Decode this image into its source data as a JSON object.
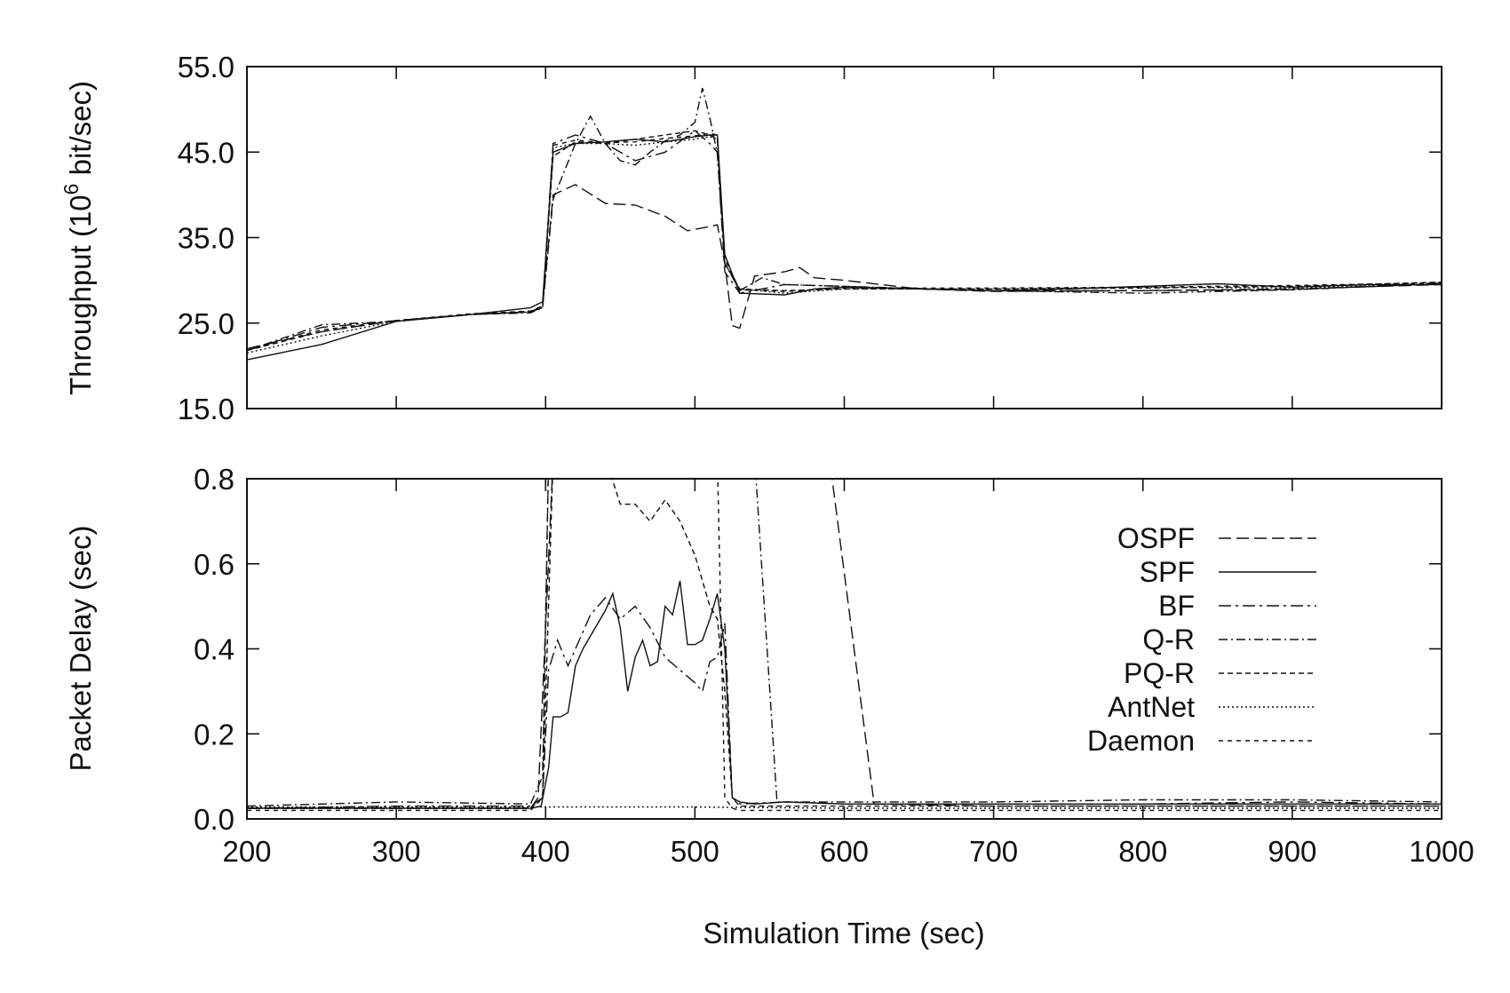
{
  "chart_data": [
    {
      "type": "line",
      "panel": "throughput",
      "ylabel_main": "Throughput (10",
      "ylabel_sup": "6",
      "ylabel_tail": " bit/sec)",
      "xlim": [
        200,
        1000
      ],
      "ylim": [
        15,
        55
      ],
      "xticks": [
        200,
        300,
        400,
        500,
        600,
        700,
        800,
        900,
        1000
      ],
      "yticks": [
        15,
        25,
        35,
        45,
        55
      ],
      "ytick_labels": [
        "15.0",
        "25.0",
        "35.0",
        "45.0",
        "55.0"
      ],
      "series": [
        {
          "name": "OSPF",
          "x": [
            200,
            250,
            300,
            350,
            390,
            398,
            405,
            420,
            440,
            460,
            480,
            495,
            510,
            515,
            520,
            525,
            530,
            540,
            560,
            570,
            580,
            600,
            650,
            700,
            800,
            900,
            1000
          ],
          "y": [
            22,
            24,
            25.3,
            26,
            26.3,
            27,
            40,
            41.2,
            39,
            38.8,
            37.5,
            35.8,
            36.3,
            36.5,
            32,
            24.7,
            24.4,
            30.5,
            31,
            31.5,
            30.3,
            30,
            29,
            28.7,
            28.8,
            29,
            29.5
          ]
        },
        {
          "name": "SPF",
          "x": [
            200,
            250,
            300,
            350,
            390,
            398,
            405,
            420,
            440,
            460,
            480,
            500,
            510,
            515,
            520,
            530,
            560,
            580,
            600,
            650,
            700,
            750,
            800,
            850,
            900,
            950,
            1000
          ],
          "y": [
            20.7,
            22.5,
            25.2,
            26,
            26.8,
            27.5,
            45,
            46,
            46.2,
            46.5,
            46.2,
            46.8,
            47,
            47,
            33,
            28.5,
            28.3,
            29,
            29.2,
            29,
            28.8,
            29,
            29.3,
            29.6,
            29.2,
            29.5,
            29.5
          ]
        },
        {
          "name": "BF",
          "x": [
            200,
            250,
            300,
            350,
            390,
            398,
            405,
            420,
            440,
            460,
            480,
            500,
            510,
            515,
            520,
            530,
            560,
            600,
            650,
            700,
            800,
            900,
            1000
          ],
          "y": [
            21.8,
            24.5,
            25.3,
            26,
            26.3,
            26.8,
            46,
            47,
            46,
            44,
            45,
            47.5,
            46,
            45,
            31,
            28.5,
            29.5,
            29.3,
            29,
            28.8,
            28.8,
            28.9,
            29.7
          ]
        },
        {
          "name": "Q-R",
          "x": [
            200,
            250,
            300,
            350,
            390,
            398,
            405,
            420,
            430,
            440,
            450,
            460,
            470,
            480,
            490,
            500,
            505,
            510,
            515,
            520,
            530,
            545,
            560,
            600,
            700,
            800,
            900,
            1000
          ],
          "y": [
            21.8,
            24.8,
            25.2,
            26,
            26.2,
            26.8,
            39.5,
            46,
            49.2,
            46,
            44,
            43.5,
            45,
            46.3,
            47,
            48.5,
            52.5,
            49,
            44.8,
            32,
            28.8,
            30.3,
            29.5,
            29.3,
            28.8,
            28.5,
            28.9,
            29.6
          ]
        },
        {
          "name": "PQ-R",
          "x": [
            200,
            250,
            300,
            350,
            390,
            398,
            405,
            420,
            440,
            460,
            480,
            500,
            510,
            515,
            520,
            530,
            560,
            600,
            700,
            800,
            900,
            1000
          ],
          "y": [
            21.8,
            24,
            25.3,
            26,
            26.4,
            27,
            44.5,
            46.2,
            46,
            46.5,
            47,
            47.5,
            47,
            46.5,
            32,
            29,
            28.8,
            29,
            29,
            29.1,
            29.3,
            29.8
          ]
        },
        {
          "name": "AntNet",
          "x": [
            200,
            250,
            300,
            350,
            390,
            398,
            405,
            420,
            440,
            460,
            480,
            500,
            510,
            515,
            520,
            530,
            560,
            600,
            700,
            800,
            900,
            1000
          ],
          "y": [
            21.5,
            23.5,
            25.2,
            26,
            26.3,
            27,
            45.5,
            46,
            46,
            45.8,
            46.2,
            46.5,
            46.8,
            46.5,
            32,
            29,
            28.5,
            29,
            29,
            29.2,
            29.1,
            29.6
          ]
        },
        {
          "name": "Daemon",
          "x": [
            200,
            250,
            300,
            350,
            390,
            398,
            405,
            420,
            440,
            460,
            480,
            500,
            510,
            515,
            520,
            530,
            560,
            600,
            700,
            800,
            900,
            1000
          ],
          "y": [
            21.8,
            24.2,
            25.3,
            26.1,
            26.4,
            27,
            45.8,
            46.4,
            46.1,
            46.2,
            46.6,
            46.9,
            47.2,
            47,
            32.5,
            28.9,
            28.7,
            29.1,
            29.1,
            29.2,
            29.4,
            29.7
          ]
        }
      ]
    },
    {
      "type": "line",
      "panel": "delay",
      "ylabel": "Packet Delay (sec)",
      "xlabel": "Simulation Time (sec)",
      "xlim": [
        200,
        1000
      ],
      "ylim": [
        0,
        0.8
      ],
      "xticks": [
        200,
        300,
        400,
        500,
        600,
        700,
        800,
        900,
        1000
      ],
      "xtick_labels": [
        "200",
        "300",
        "400",
        "500",
        "600",
        "700",
        "800",
        "900",
        "1000"
      ],
      "yticks": [
        0,
        0.2,
        0.4,
        0.6,
        0.8
      ],
      "ytick_labels": [
        "0.0",
        "0.2",
        "0.4",
        "0.6",
        "0.8"
      ],
      "legend_position": "right",
      "series": [
        {
          "name": "OSPF",
          "x": [
            200,
            300,
            390,
            395,
            405,
            420,
            590,
            620,
            700,
            800,
            900,
            1000
          ],
          "y": [
            0.025,
            0.025,
            0.025,
            0.05,
            0.85,
            0.85,
            0.85,
            0.035,
            0.03,
            0.03,
            0.03,
            0.03
          ]
        },
        {
          "name": "SPF",
          "x": [
            200,
            300,
            390,
            397,
            402,
            405,
            410,
            415,
            420,
            425,
            430,
            440,
            445,
            450,
            455,
            460,
            465,
            470,
            475,
            480,
            485,
            490,
            495,
            500,
            505,
            510,
            515,
            520,
            525,
            530,
            540,
            560,
            600,
            650,
            700,
            750,
            800,
            850,
            900,
            950,
            1000
          ],
          "y": [
            0.025,
            0.025,
            0.025,
            0.03,
            0.12,
            0.24,
            0.24,
            0.25,
            0.36,
            0.4,
            0.43,
            0.49,
            0.53,
            0.45,
            0.3,
            0.38,
            0.42,
            0.36,
            0.37,
            0.5,
            0.48,
            0.56,
            0.41,
            0.41,
            0.42,
            0.47,
            0.53,
            0.4,
            0.05,
            0.04,
            0.035,
            0.04,
            0.035,
            0.035,
            0.035,
            0.035,
            0.035,
            0.035,
            0.035,
            0.035,
            0.035
          ]
        },
        {
          "name": "BF",
          "x": [
            200,
            300,
            390,
            398,
            402,
            408,
            415,
            420,
            430,
            440,
            450,
            460,
            470,
            480,
            490,
            500,
            505,
            510,
            515,
            520,
            525,
            530,
            560,
            600,
            700,
            800,
            900,
            1000
          ],
          "y": [
            0.025,
            0.03,
            0.03,
            0.05,
            0.35,
            0.42,
            0.36,
            0.4,
            0.48,
            0.52,
            0.47,
            0.5,
            0.45,
            0.38,
            0.35,
            0.32,
            0.3,
            0.37,
            0.38,
            0.46,
            0.05,
            0.035,
            0.04,
            0.035,
            0.035,
            0.035,
            0.04,
            0.035
          ]
        },
        {
          "name": "Q-R",
          "x": [
            200,
            300,
            390,
            398,
            402,
            408,
            412,
            420,
            430,
            440,
            450,
            460,
            470,
            480,
            490,
            500,
            505,
            510,
            515,
            520,
            525,
            530,
            540,
            555,
            600,
            700,
            800,
            900,
            1000
          ],
          "y": [
            0.03,
            0.04,
            0.035,
            0.1,
            0.85,
            0.85,
            0.85,
            0.85,
            0.85,
            0.85,
            0.85,
            0.85,
            0.85,
            0.85,
            0.85,
            0.85,
            0.85,
            0.85,
            0.85,
            0.85,
            0.85,
            0.85,
            0.85,
            0.04,
            0.04,
            0.04,
            0.045,
            0.045,
            0.04
          ]
        },
        {
          "name": "PQ-R",
          "x": [
            200,
            300,
            390,
            398,
            405,
            415,
            425,
            430,
            440,
            450,
            460,
            470,
            480,
            490,
            500,
            510,
            515,
            520,
            525,
            530,
            540,
            560,
            600,
            700,
            800,
            900,
            1000
          ],
          "y": [
            0.025,
            0.025,
            0.025,
            0.05,
            0.85,
            0.85,
            0.85,
            0.85,
            0.85,
            0.74,
            0.74,
            0.7,
            0.75,
            0.7,
            0.62,
            0.5,
            0.47,
            0.3,
            0.05,
            0.03,
            0.03,
            0.03,
            0.03,
            0.03,
            0.03,
            0.03,
            0.03
          ]
        },
        {
          "name": "AntNet",
          "x": [
            200,
            300,
            400,
            500,
            600,
            700,
            800,
            900,
            1000
          ],
          "y": [
            0.028,
            0.028,
            0.028,
            0.028,
            0.025,
            0.025,
            0.025,
            0.025,
            0.025
          ]
        },
        {
          "name": "Daemon",
          "x": [
            200,
            300,
            390,
            398,
            402,
            410,
            430,
            450,
            500,
            515,
            520,
            525,
            530,
            560,
            600,
            700,
            800,
            900,
            1000
          ],
          "y": [
            0.02,
            0.02,
            0.02,
            0.05,
            0.85,
            0.85,
            0.85,
            0.85,
            0.85,
            0.85,
            0.05,
            0.025,
            0.02,
            0.02,
            0.02,
            0.02,
            0.02,
            0.02,
            0.02
          ]
        }
      ]
    }
  ],
  "styles": {
    "OSPF": "14,6",
    "SPF": "",
    "BF": "14,5,3,5",
    "Q-R": "10,4,2,4",
    "PQ-R": "6,4",
    "AntNet": "2,3",
    "Daemon": "5,5"
  },
  "colors": {
    "line": "#111111",
    "background": "#ffffff"
  }
}
